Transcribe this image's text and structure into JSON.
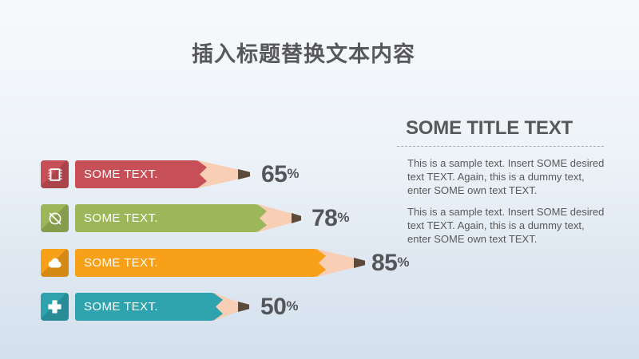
{
  "slide": {
    "title": "插入标题替换文本内容"
  },
  "right_panel": {
    "title": "SOME TITLE TEXT",
    "paragraphs": [
      "This is a sample text. Insert SOME desired text TEXT. Again, this is a dummy text, enter SOME own text TEXT.",
      "This is a sample text. Insert SOME desired text TEXT. Again, this is a dummy text, enter SOME own text TEXT."
    ]
  },
  "chart_data": {
    "type": "bar",
    "orientation": "horizontal",
    "title": "插入标题替换文本内容",
    "categories": [
      "SOME TEXT.",
      "SOME TEXT.",
      "SOME TEXT.",
      "SOME TEXT."
    ],
    "values": [
      65,
      78,
      85,
      50
    ],
    "unit": "%",
    "value_range": [
      0,
      100
    ],
    "style": "pencil-bars",
    "bars": [
      {
        "label": "SOME TEXT.",
        "value": 65,
        "unit": "%",
        "color": "#c75058",
        "icon": "film-icon",
        "geometry": {
          "body": 154,
          "cone": 50,
          "tip": 15,
          "gap": 14
        }
      },
      {
        "label": "SOME TEXT.",
        "value": 78,
        "unit": "%",
        "color": "#9cb75a",
        "icon": "ban-icon",
        "geometry": {
          "body": 229,
          "cone": 42,
          "tip": 12,
          "gap": 13
        }
      },
      {
        "label": "SOME TEXT.",
        "value": 85,
        "unit": "%",
        "color": "#f7a018",
        "icon": "cloud-icon",
        "geometry": {
          "body": 303,
          "cone": 46,
          "tip": 14,
          "gap": 8
        }
      },
      {
        "label": "SOME TEXT.",
        "value": 50,
        "unit": "%",
        "color": "#2ea3ae",
        "icon": "plus-icon",
        "geometry": {
          "body": 174,
          "cone": 30,
          "tip": 14,
          "gap": 14
        }
      }
    ],
    "colors": {
      "wood": "#f8ceb4",
      "graphite_tip": "#5c4a3b",
      "value_text": "#55565a"
    }
  }
}
